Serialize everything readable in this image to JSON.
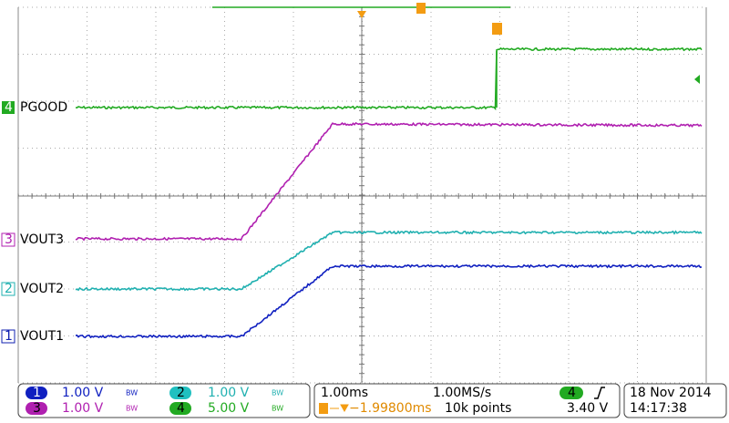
{
  "traces": [
    {
      "marker": "4",
      "label": "PGOOD"
    },
    {
      "marker": "3",
      "label": "VOUT3"
    },
    {
      "marker": "2",
      "label": "VOUT2"
    },
    {
      "marker": "1",
      "label": "VOUT1"
    }
  ],
  "channels": [
    {
      "number": "1",
      "scale": "1.00 V",
      "bw": "BW"
    },
    {
      "number": "2",
      "scale": "1.00 V",
      "bw": "BW"
    },
    {
      "number": "3",
      "scale": "1.00 V",
      "bw": "BW"
    },
    {
      "number": "4",
      "scale": "5.00 V",
      "bw": "BW"
    }
  ],
  "timebase": {
    "scale": "1.00ms",
    "rate": "1.00MS/s",
    "trigger_channel": "4",
    "trigger_delay": "−1.99800ms",
    "points": "10k points",
    "trigger_level": "3.40 V"
  },
  "datetime": {
    "date": "18 Nov 2014",
    "time": "14:17:38"
  }
}
